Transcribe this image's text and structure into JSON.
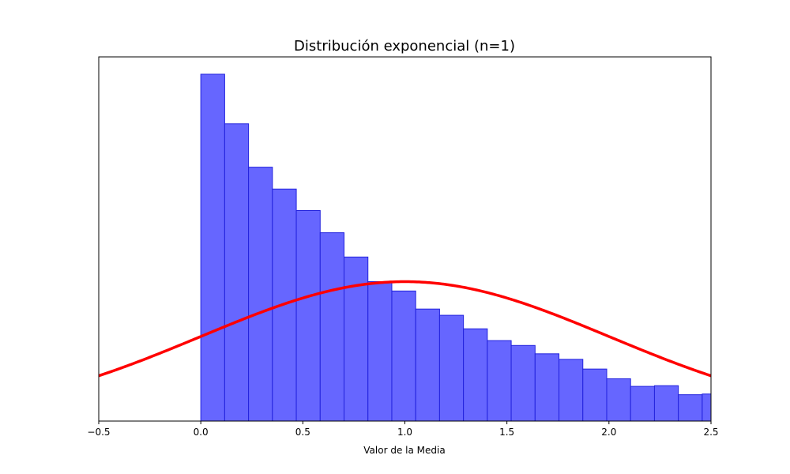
{
  "chart_data": {
    "type": "bar",
    "title": "Distribución exponencial (n=1)",
    "xlabel": "Valor de la Media",
    "ylabel": "",
    "xlim": [
      -0.5,
      2.5
    ],
    "ylim": [
      0,
      1.05
    ],
    "grid": false,
    "x_ticks": [
      "−0.5",
      "0.0",
      "0.5",
      "1.0",
      "1.5",
      "2.0",
      "2.5"
    ],
    "x_tick_values": [
      -0.5,
      0.0,
      0.5,
      1.0,
      1.5,
      2.0,
      2.5
    ],
    "y_ticks_visible": false,
    "bin_width": 0.117,
    "bin_starts": [
      0.0,
      0.117,
      0.234,
      0.351,
      0.468,
      0.585,
      0.702,
      0.819,
      0.936,
      1.053,
      1.17,
      1.287,
      1.404,
      1.521,
      1.638,
      1.755,
      1.872,
      1.989,
      2.106,
      2.223,
      2.34,
      2.457
    ],
    "bin_values": [
      1.0,
      0.857,
      0.732,
      0.669,
      0.607,
      0.543,
      0.473,
      0.402,
      0.375,
      0.323,
      0.305,
      0.266,
      0.232,
      0.218,
      0.194,
      0.178,
      0.15,
      0.122,
      0.1,
      0.102,
      0.076,
      0.078
    ],
    "series": [
      {
        "type": "histogram",
        "color": "#6666ff",
        "edge_color": "#2222dd"
      },
      {
        "type": "line",
        "color": "#ff0000",
        "mean": 1.0,
        "std": 1.0,
        "peak": 0.402
      }
    ]
  }
}
